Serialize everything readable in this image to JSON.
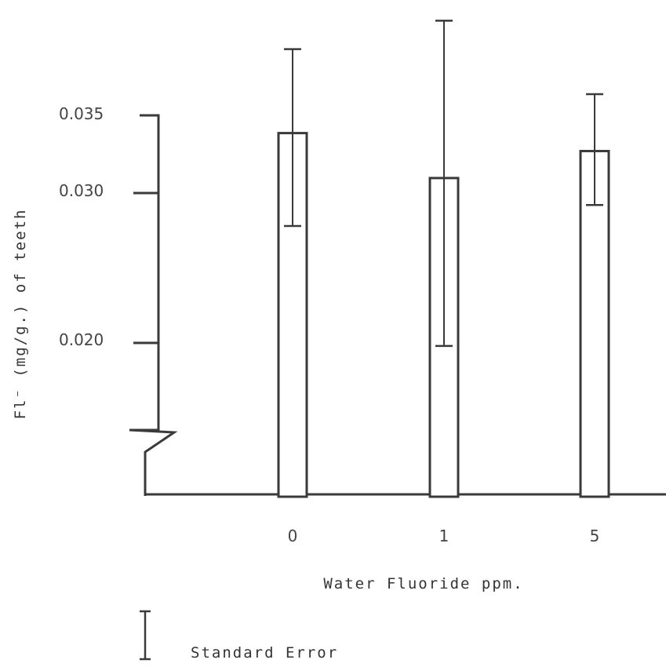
{
  "chart_data": {
    "type": "bar",
    "categories": [
      "0",
      "1",
      "5"
    ],
    "values": [
      0.034,
      0.031,
      0.0328
    ],
    "error_low": [
      0.0278,
      0.0198,
      0.0292
    ],
    "error_high": [
      0.0396,
      0.0415,
      0.0366
    ],
    "xlabel": "Water Fluoride ppm.",
    "ylabel": "Fl⁻ (mg/g.) of teeth",
    "y_ticks": [
      "0.035",
      "0.030",
      "0.020"
    ],
    "y_tick_values": [
      0.035,
      0.03,
      0.02
    ],
    "axis_break": true,
    "legend": {
      "label": "Standard Error",
      "position": "bottom-left"
    },
    "colors": {
      "ink": "#3a3a3a",
      "bar_fill": "#ffffff"
    }
  }
}
